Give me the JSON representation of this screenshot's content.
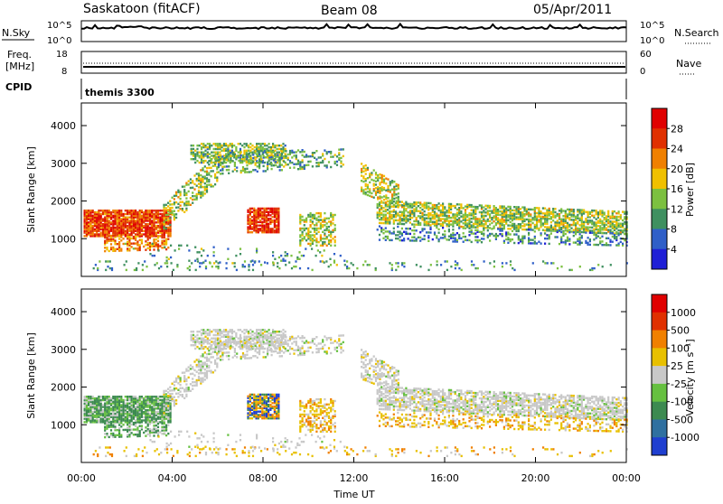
{
  "header": {
    "station": "Saskatoon (fitACF)",
    "beam": "Beam 08",
    "date": "05/Apr/2011"
  },
  "noise_panel": {
    "left_label": "N.Sky",
    "left_ticks": [
      "10^5",
      "10^0"
    ],
    "right_ticks": [
      "10^5",
      "10^0"
    ],
    "right_label": "N.Search"
  },
  "freq_panel": {
    "left_label_1": "Freq.",
    "left_label_2": "[MHz]",
    "left_ticks": [
      "18",
      "8"
    ],
    "right_ticks": [
      "60",
      "0"
    ],
    "right_label": "Nave"
  },
  "cpid_panel": {
    "label": "CPID",
    "mode": "themis 3300"
  },
  "chart_data": [
    {
      "type": "heatmap",
      "quantity": "power",
      "ylabel": "Slant Range [km]",
      "yticks": [
        1000,
        2000,
        3000,
        4000
      ],
      "ylim": [
        0,
        4600
      ],
      "xlim": [
        0,
        24
      ],
      "colorbar_label": "Power [dB]",
      "colorbar_ticks": [
        "4",
        "8",
        "12",
        "16",
        "20",
        "24",
        "28"
      ],
      "colors": [
        "#1f1fd6",
        "#2f5fc8",
        "#3f9060",
        "#7cc040",
        "#f0c000",
        "#f08000",
        "#e03000",
        "#e00000"
      ]
    },
    {
      "type": "heatmap",
      "quantity": "velocity",
      "ylabel": "Slant Range [km]",
      "yticks": [
        1000,
        2000,
        3000,
        4000
      ],
      "ylim": [
        0,
        4600
      ],
      "xlim": [
        0,
        24
      ],
      "colorbar_label": "Velocity [m s⁻¹]",
      "colorbar_ticks": [
        "1000",
        "500",
        "100",
        "25",
        "-25",
        "-100",
        "-500",
        "-1000"
      ],
      "colors": [
        "#1f3fd0",
        "#2f70a0",
        "#3c8a50",
        "#66c040",
        "#c8c8c8",
        "#e8c000",
        "#f08000",
        "#e03000",
        "#e00000"
      ]
    }
  ],
  "x_axis": {
    "ticks": [
      "00:00",
      "04:00",
      "08:00",
      "12:00",
      "16:00",
      "20:00",
      "00:00"
    ],
    "label": "Time UT"
  }
}
